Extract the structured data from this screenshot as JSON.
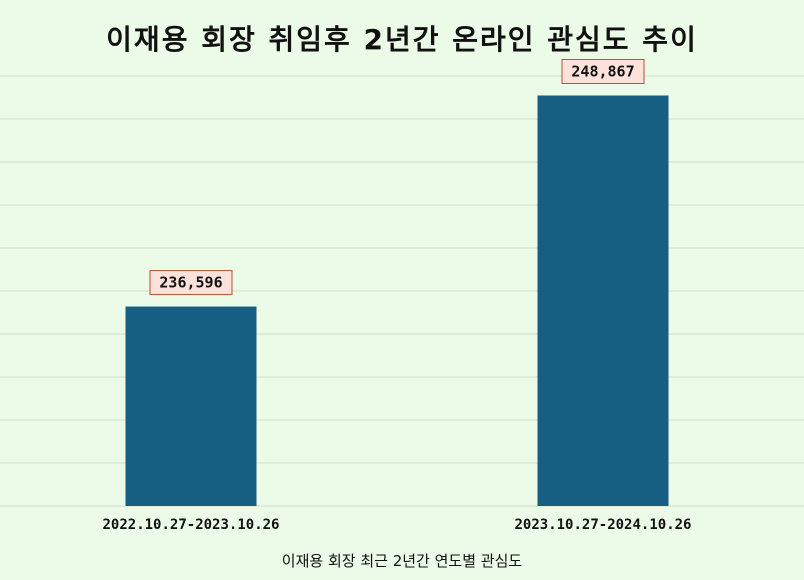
{
  "chart_data": {
    "type": "bar",
    "title": "이재용 회장 취임후 2년간 온라인 관심도 추이",
    "xlabel": "이재용 회장 최근 2년간 연도별 관심도",
    "ylabel": "",
    "categories": [
      "2022.10.27-2023.10.26",
      "2023.10.27-2024.10.26"
    ],
    "values": [
      236596,
      248867
    ],
    "data_labels": [
      "236,596",
      "248,867"
    ],
    "ylim": [
      225000,
      250000
    ],
    "grid": true,
    "bar_color": "#175f82",
    "label_bg_color": "#fde2dc",
    "label_border_color": "#b8513a",
    "background_color": "#ecfbe8",
    "grid_color": "#cfdccc"
  }
}
